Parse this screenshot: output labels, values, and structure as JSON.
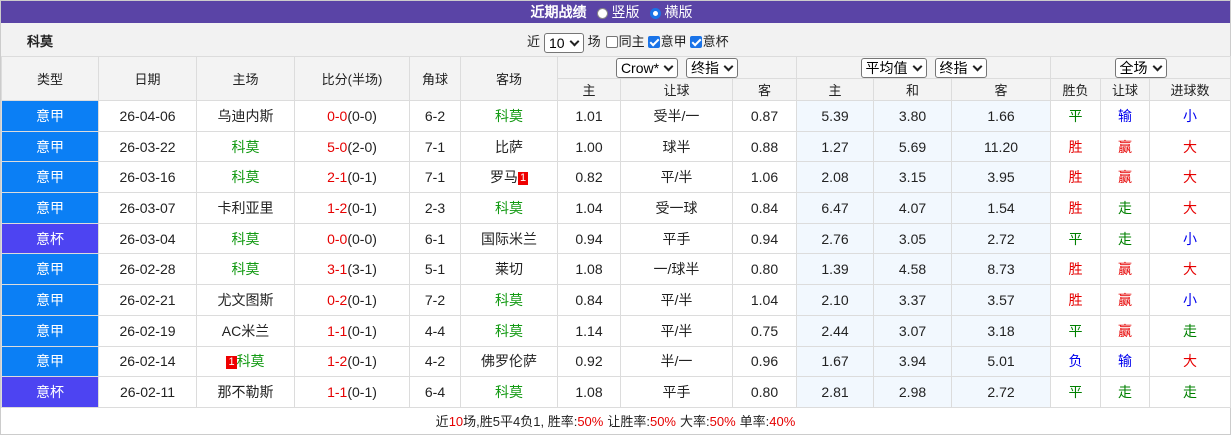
{
  "header": {
    "title": "近期战绩",
    "options": [
      {
        "label": "竖版",
        "selected": false
      },
      {
        "label": "横版",
        "selected": true
      }
    ]
  },
  "filter": {
    "team": "科莫",
    "prefix": "近",
    "count": "10",
    "suffix": "场",
    "checks": [
      {
        "label": "同主",
        "checked": false
      },
      {
        "label": "意甲",
        "checked": true
      },
      {
        "label": "意杯",
        "checked": true
      }
    ]
  },
  "table": {
    "columns": [
      "类型",
      "日期",
      "主场",
      "比分(半场)",
      "角球",
      "客场"
    ],
    "groups": [
      {
        "selects": [
          "Crow*",
          "终指"
        ],
        "subcolumns": [
          "主",
          "让球",
          "客"
        ]
      },
      {
        "selects": [
          "平均值",
          "终指"
        ],
        "subcolumns": [
          "主",
          "和",
          "客"
        ]
      },
      {
        "selects": [
          "全场"
        ],
        "subcolumns": [
          "胜负",
          "让球",
          "进球数"
        ]
      }
    ],
    "type_colors": {
      "意甲": "#0b7ff5",
      "意杯": "#4d44f2"
    },
    "result_colors": {
      "胜": "#e60000",
      "平": "#008000",
      "负": "#0000ee",
      "赢": "#e60000",
      "输": "#0000ee",
      "走": "#008000",
      "大": "#e60000",
      "小": "#0000ee"
    },
    "team_color": "#139a13",
    "rows": [
      {
        "type": "意甲",
        "date": "26-04-06",
        "home": "乌迪内斯",
        "score": "0-0",
        "half": "(0-0)",
        "corners": "6-2",
        "away": "科莫",
        "odds_home": "1.01",
        "handicap": "受半/一",
        "odds_away": "0.87",
        "avg_home": "5.39",
        "avg_draw": "3.80",
        "avg_away": "1.66",
        "result": "平",
        "handicap_result": "输",
        "goals_result": "小"
      },
      {
        "type": "意甲",
        "date": "26-03-22",
        "home": "科莫",
        "score": "5-0",
        "half": "(2-0)",
        "corners": "7-1",
        "away": "比萨",
        "odds_home": "1.00",
        "handicap": "球半",
        "odds_away": "0.88",
        "avg_home": "1.27",
        "avg_draw": "5.69",
        "avg_away": "11.20",
        "result": "胜",
        "handicap_result": "赢",
        "goals_result": "大"
      },
      {
        "type": "意甲",
        "date": "26-03-16",
        "home": "科莫",
        "score": "2-1",
        "half": "(0-1)",
        "corners": "7-1",
        "away": "罗马",
        "away_card": "1",
        "odds_home": "0.82",
        "handicap": "平/半",
        "odds_away": "1.06",
        "avg_home": "2.08",
        "avg_draw": "3.15",
        "avg_away": "3.95",
        "result": "胜",
        "handicap_result": "赢",
        "goals_result": "大"
      },
      {
        "type": "意甲",
        "date": "26-03-07",
        "home": "卡利亚里",
        "score": "1-2",
        "half": "(0-1)",
        "corners": "2-3",
        "away": "科莫",
        "odds_home": "1.04",
        "handicap": "受一球",
        "odds_away": "0.84",
        "avg_home": "6.47",
        "avg_draw": "4.07",
        "avg_away": "1.54",
        "result": "胜",
        "handicap_result": "走",
        "goals_result": "大"
      },
      {
        "type": "意杯",
        "date": "26-03-04",
        "home": "科莫",
        "score": "0-0",
        "half": "(0-0)",
        "corners": "6-1",
        "away": "国际米兰",
        "odds_home": "0.94",
        "handicap": "平手",
        "odds_away": "0.94",
        "avg_home": "2.76",
        "avg_draw": "3.05",
        "avg_away": "2.72",
        "result": "平",
        "handicap_result": "走",
        "goals_result": "小"
      },
      {
        "type": "意甲",
        "date": "26-02-28",
        "home": "科莫",
        "score": "3-1",
        "half": "(3-1)",
        "corners": "5-1",
        "away": "莱切",
        "odds_home": "1.08",
        "handicap": "一/球半",
        "odds_away": "0.80",
        "avg_home": "1.39",
        "avg_draw": "4.58",
        "avg_away": "8.73",
        "result": "胜",
        "handicap_result": "赢",
        "goals_result": "大"
      },
      {
        "type": "意甲",
        "date": "26-02-21",
        "home": "尤文图斯",
        "score": "0-2",
        "half": "(0-1)",
        "corners": "7-2",
        "away": "科莫",
        "odds_home": "0.84",
        "handicap": "平/半",
        "odds_away": "1.04",
        "avg_home": "2.10",
        "avg_draw": "3.37",
        "avg_away": "3.57",
        "result": "胜",
        "handicap_result": "赢",
        "goals_result": "小"
      },
      {
        "type": "意甲",
        "date": "26-02-19",
        "home": "AC米兰",
        "score": "1-1",
        "half": "(0-1)",
        "corners": "4-4",
        "away": "科莫",
        "odds_home": "1.14",
        "handicap": "平/半",
        "odds_away": "0.75",
        "avg_home": "2.44",
        "avg_draw": "3.07",
        "avg_away": "3.18",
        "result": "平",
        "handicap_result": "赢",
        "goals_result": "走"
      },
      {
        "type": "意甲",
        "date": "26-02-14",
        "home": "科莫",
        "home_card": "1",
        "score": "1-2",
        "half": "(0-1)",
        "corners": "4-2",
        "away": "佛罗伦萨",
        "odds_home": "0.92",
        "handicap": "半/一",
        "odds_away": "0.96",
        "avg_home": "1.67",
        "avg_draw": "3.94",
        "avg_away": "5.01",
        "result": "负",
        "handicap_result": "输",
        "goals_result": "大"
      },
      {
        "type": "意杯",
        "date": "26-02-11",
        "home": "那不勒斯",
        "score": "1-1",
        "half": "(0-1)",
        "corners": "6-4",
        "away": "科莫",
        "odds_home": "1.08",
        "handicap": "平手",
        "odds_away": "0.80",
        "avg_home": "2.81",
        "avg_draw": "2.98",
        "avg_away": "2.72",
        "result": "平",
        "handicap_result": "走",
        "goals_result": "走"
      }
    ]
  },
  "footer": {
    "prefix": "近",
    "count": "10",
    "record": "场,胜5平4负1, ",
    "stats": [
      {
        "label": "胜率:",
        "value": "50%"
      },
      {
        "label": "让胜率:",
        "value": "50%"
      },
      {
        "label": "大率:",
        "value": "50%"
      },
      {
        "label": "单率:",
        "value": "40%"
      }
    ]
  }
}
